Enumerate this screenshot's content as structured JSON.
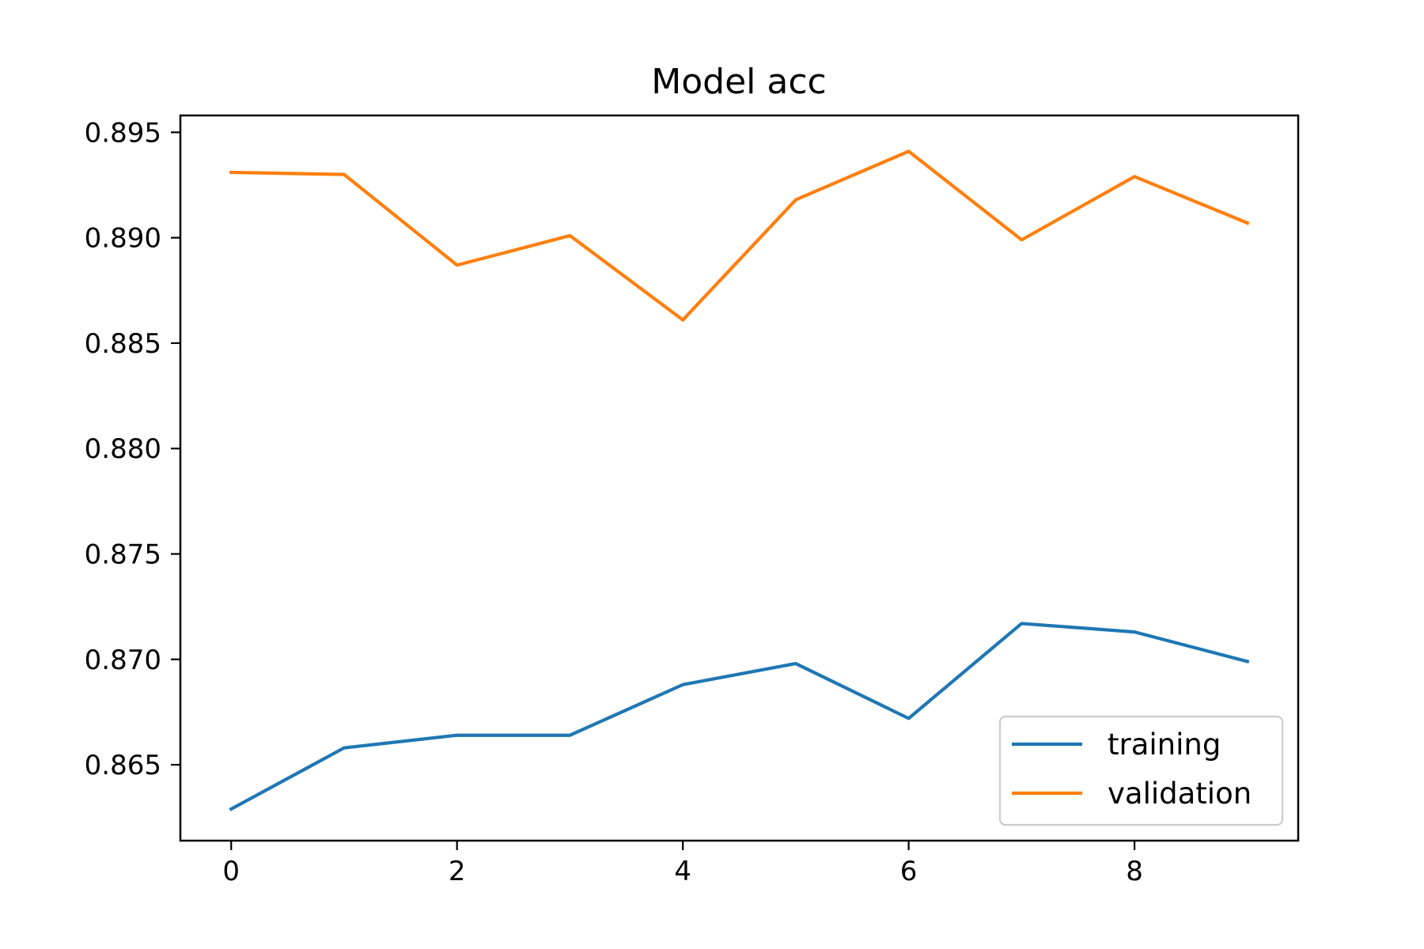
{
  "chart_data": {
    "type": "line",
    "title": "Model acc",
    "xlabel": "",
    "ylabel": "",
    "x": [
      0,
      1,
      2,
      3,
      4,
      5,
      6,
      7,
      8,
      9
    ],
    "xlim": [
      -0.45,
      9.45
    ],
    "ylim": [
      0.8614,
      0.8958
    ],
    "xticks": [
      0,
      2,
      4,
      6,
      8
    ],
    "yticks": [
      0.865,
      0.87,
      0.875,
      0.88,
      0.885,
      0.89,
      0.895
    ],
    "xtick_labels": [
      "0",
      "2",
      "4",
      "6",
      "8"
    ],
    "ytick_labels": [
      "0.865",
      "0.870",
      "0.875",
      "0.880",
      "0.885",
      "0.890",
      "0.895"
    ],
    "grid": false,
    "legend_position": "lower-right",
    "series": [
      {
        "name": "training",
        "color": "#1f77b4",
        "values": [
          0.8629,
          0.8658,
          0.8664,
          0.8664,
          0.8688,
          0.8698,
          0.8672,
          0.8717,
          0.8713,
          0.8699
        ]
      },
      {
        "name": "validation",
        "color": "#ff7f0e",
        "values": [
          0.8931,
          0.893,
          0.8887,
          0.8901,
          0.8861,
          0.8918,
          0.8941,
          0.8899,
          0.8929,
          0.8907
        ]
      }
    ]
  }
}
